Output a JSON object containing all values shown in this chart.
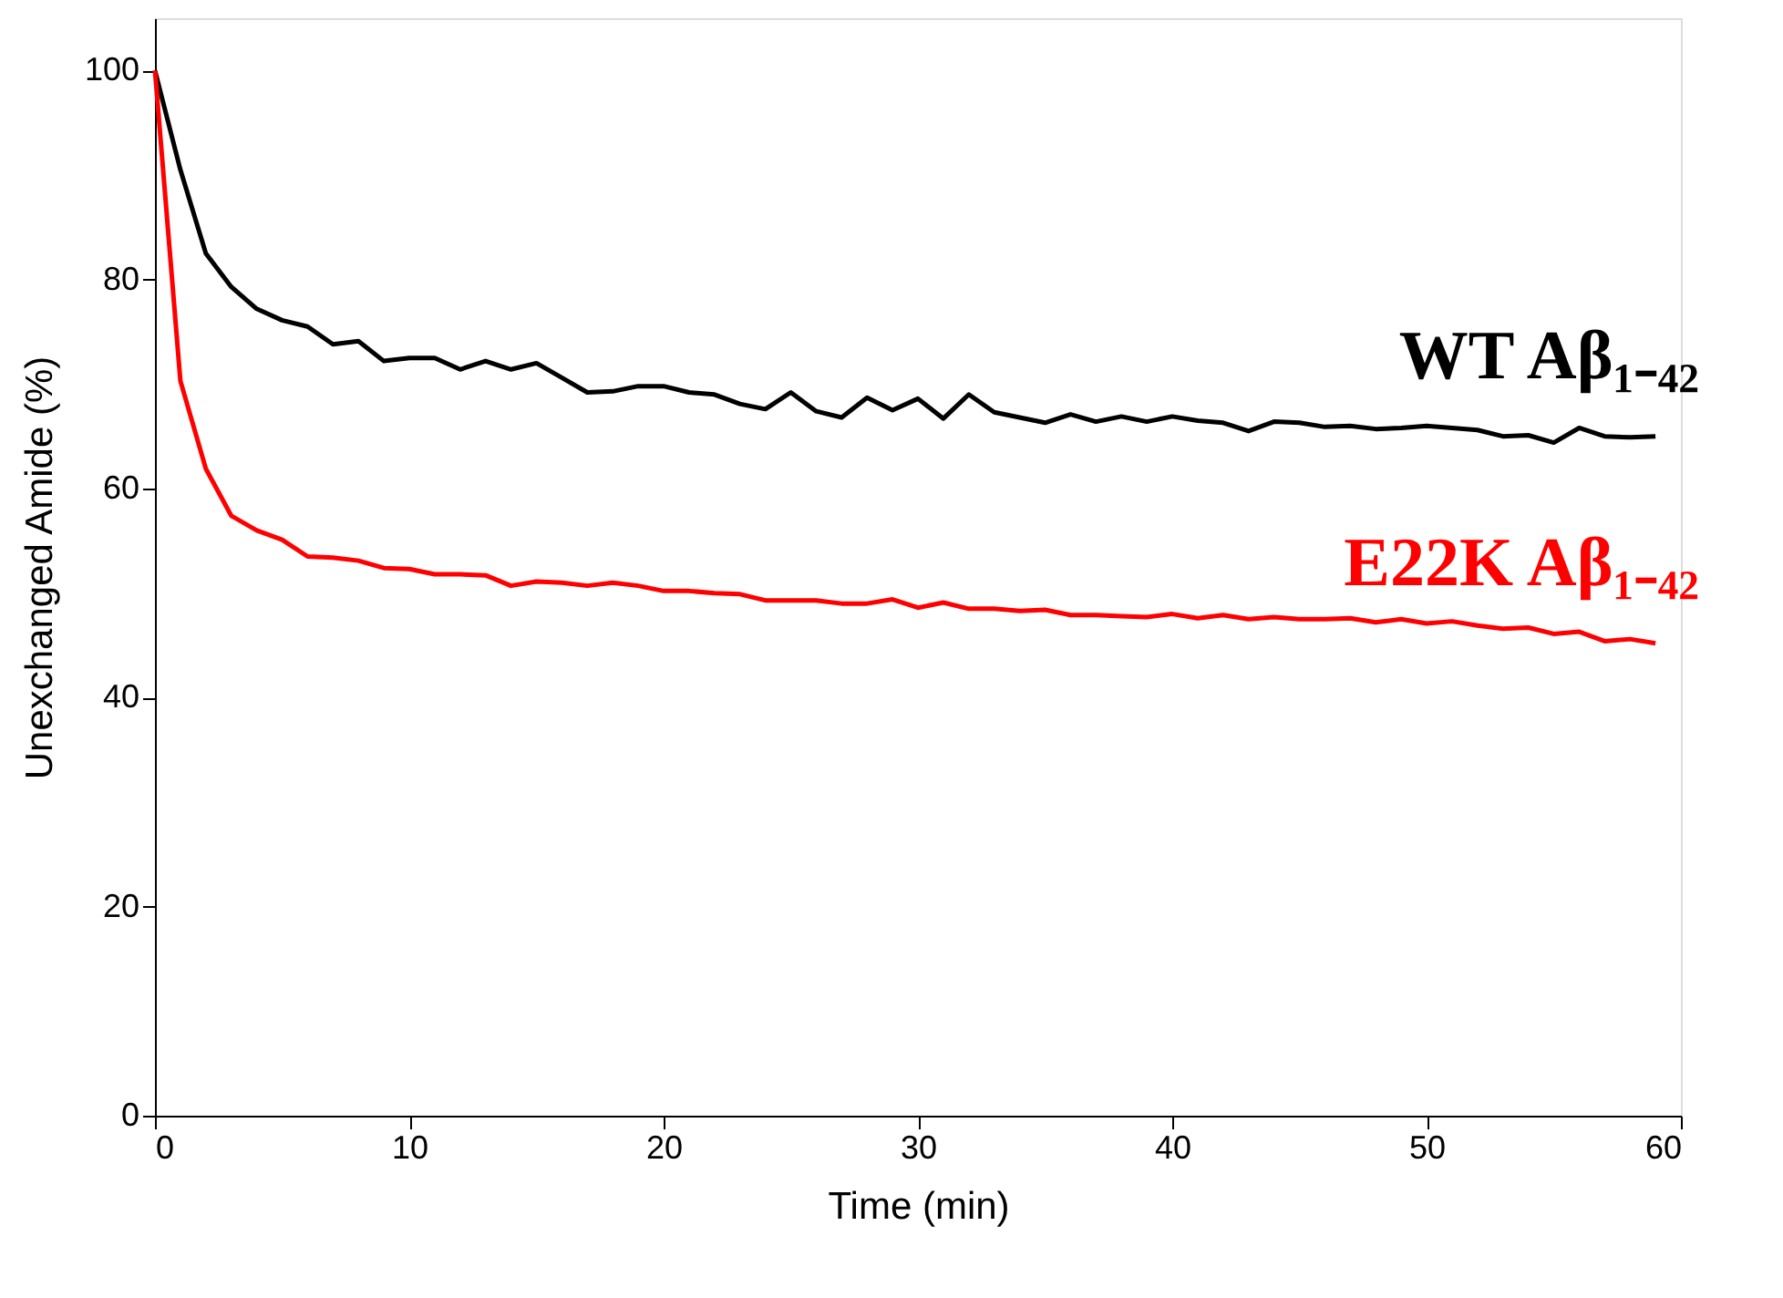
{
  "chart_data": {
    "type": "line",
    "xlabel": "Time (min)",
    "ylabel": "Unexchanged Amide (%)",
    "x": [
      0,
      1,
      2,
      3,
      4,
      5,
      6,
      7,
      8,
      9,
      10,
      11,
      12,
      13,
      14,
      15,
      16,
      17,
      18,
      19,
      20,
      21,
      22,
      23,
      24,
      25,
      26,
      27,
      28,
      29,
      30,
      31,
      32,
      33,
      34,
      35,
      36,
      37,
      38,
      39,
      40,
      41,
      42,
      43,
      44,
      45,
      46,
      47,
      48,
      49,
      50,
      51,
      52,
      53,
      54,
      55,
      56,
      57,
      58,
      59
    ],
    "series": [
      {
        "name": "WT Aβ₁₋₄₂",
        "color": "#000000",
        "values": [
          100,
          90.5,
          82.5,
          79.3,
          77.2,
          76.1,
          75.5,
          73.8,
          74.1,
          72.2,
          72.5,
          72.5,
          71.4,
          72.2,
          71.4,
          72.0,
          70.6,
          69.2,
          69.3,
          69.8,
          69.8,
          69.2,
          69.0,
          68.1,
          67.6,
          69.2,
          67.4,
          66.8,
          68.7,
          67.5,
          68.6,
          66.7,
          69.0,
          67.3,
          66.8,
          66.3,
          67.1,
          66.4,
          66.9,
          66.4,
          66.9,
          66.5,
          66.3,
          65.5,
          66.4,
          66.3,
          65.9,
          66.0,
          65.7,
          65.8,
          66.0,
          65.8,
          65.6,
          65.0,
          65.1,
          64.4,
          65.8,
          65.0,
          64.9,
          65.0
        ]
      },
      {
        "name": "E22K Aβ₁₋₄₂",
        "color": "#ff0000",
        "values": [
          100,
          70.3,
          61.9,
          57.4,
          56.0,
          55.1,
          53.5,
          53.4,
          53.1,
          52.4,
          52.3,
          51.8,
          51.8,
          51.7,
          50.7,
          51.1,
          51.0,
          50.7,
          51.0,
          50.7,
          50.2,
          50.2,
          50.0,
          49.9,
          49.3,
          49.3,
          49.3,
          49.0,
          49.0,
          49.4,
          48.6,
          49.1,
          48.5,
          48.5,
          48.3,
          48.4,
          47.9,
          47.9,
          47.8,
          47.7,
          48.0,
          47.6,
          47.9,
          47.5,
          47.7,
          47.5,
          47.5,
          47.6,
          47.2,
          47.5,
          47.1,
          47.3,
          46.9,
          46.6,
          46.7,
          46.1,
          46.3,
          45.4,
          45.6,
          45.2
        ]
      }
    ],
    "xlim": [
      0,
      60
    ],
    "xticks": [
      0,
      10,
      20,
      30,
      40,
      50,
      60
    ],
    "ylim": [
      0,
      105
    ],
    "yticks": [
      0,
      20,
      40,
      60,
      80,
      100
    ],
    "grid": false,
    "legend": false,
    "marker": "none",
    "line_style": "solid"
  }
}
